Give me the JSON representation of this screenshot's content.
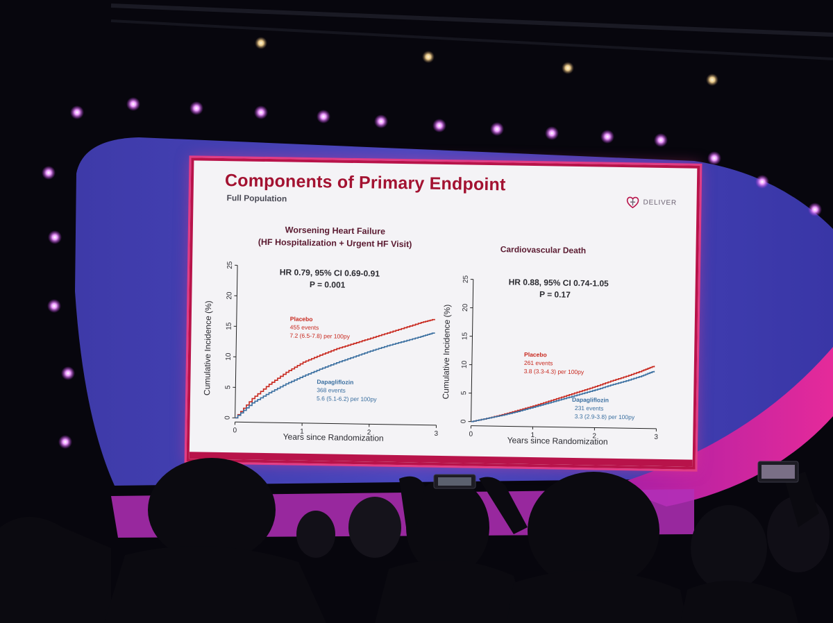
{
  "slide": {
    "title": "Components of Primary Endpoint",
    "subtitle": "Full Population",
    "logo_text": "DELIVER",
    "logo_icon": "heart-cross-icon"
  },
  "colors": {
    "placebo": "#c8281e",
    "dapagliflozin": "#3a6fa0",
    "title": "#a31231",
    "frame": "#b8134a"
  },
  "chart_data": [
    {
      "type": "line",
      "title_line1": "Worsening Heart Failure",
      "title_line2": "(HF Hospitalization + Urgent HF Visit)",
      "stat_line1": "HR 0.79,  95% CI 0.69-0.91",
      "stat_line2": "P = 0.001",
      "xlabel": "Years since Randomization",
      "ylabel": "Cumulative Incidence (%)",
      "xlim": [
        0,
        3
      ],
      "ylim": [
        0,
        25
      ],
      "xticks": [
        "0",
        "1",
        "2",
        "3"
      ],
      "yticks": [
        "0",
        "5",
        "10",
        "15",
        "20",
        "25"
      ],
      "x": [
        0,
        0.25,
        0.5,
        0.75,
        1.0,
        1.25,
        1.5,
        1.75,
        2.0,
        2.25,
        2.5,
        2.75,
        2.95
      ],
      "series": [
        {
          "name": "Placebo",
          "label_line1": "Placebo",
          "label_line2": "455 events",
          "label_line3": "7.2 (6.5-7.8) per 100py",
          "values": [
            0,
            3.2,
            5.6,
            7.6,
            9.3,
            10.5,
            11.6,
            12.5,
            13.4,
            14.3,
            15.2,
            16.1,
            16.7
          ]
        },
        {
          "name": "Dapagliflozin",
          "label_line1": "Dapagliflozin",
          "label_line2": "368 events",
          "label_line3": "5.6 (5.1-6.2) per 100py",
          "values": [
            0,
            2.5,
            4.2,
            5.7,
            7.0,
            8.2,
            9.3,
            10.3,
            11.3,
            12.2,
            13.0,
            13.8,
            14.5
          ]
        }
      ]
    },
    {
      "type": "line",
      "title_line1": "Cardiovascular Death",
      "title_line2": "",
      "stat_line1": "HR 0.88, 95% CI 0.74-1.05",
      "stat_line2": "P = 0.17",
      "xlabel": "Years since Randomization",
      "ylabel": "Cumulative Incidence (%)",
      "xlim": [
        0,
        3
      ],
      "ylim": [
        0,
        25
      ],
      "xticks": [
        "0",
        "1",
        "2",
        "3"
      ],
      "yticks": [
        "0",
        "5",
        "10",
        "15",
        "20",
        "25"
      ],
      "x": [
        0,
        0.25,
        0.5,
        0.75,
        1.0,
        1.25,
        1.5,
        1.75,
        2.0,
        2.25,
        2.5,
        2.75,
        2.95
      ],
      "series": [
        {
          "name": "Placebo",
          "label_line1": "Placebo",
          "label_line2": "261 events",
          "label_line3": "3.8 (3.3-4.3) per 100py",
          "values": [
            0,
            0.6,
            1.3,
            2.1,
            2.9,
            3.8,
            4.7,
            5.6,
            6.5,
            7.5,
            8.4,
            9.4,
            10.3
          ]
        },
        {
          "name": "Dapagliflozin",
          "label_line1": "Dapagliflozin",
          "label_line2": "231 events",
          "label_line3": "3.3 (2.9-3.8) per 100py",
          "values": [
            0,
            0.6,
            1.2,
            1.9,
            2.7,
            3.5,
            4.3,
            5.1,
            5.9,
            6.8,
            7.6,
            8.5,
            9.4
          ]
        }
      ]
    }
  ]
}
